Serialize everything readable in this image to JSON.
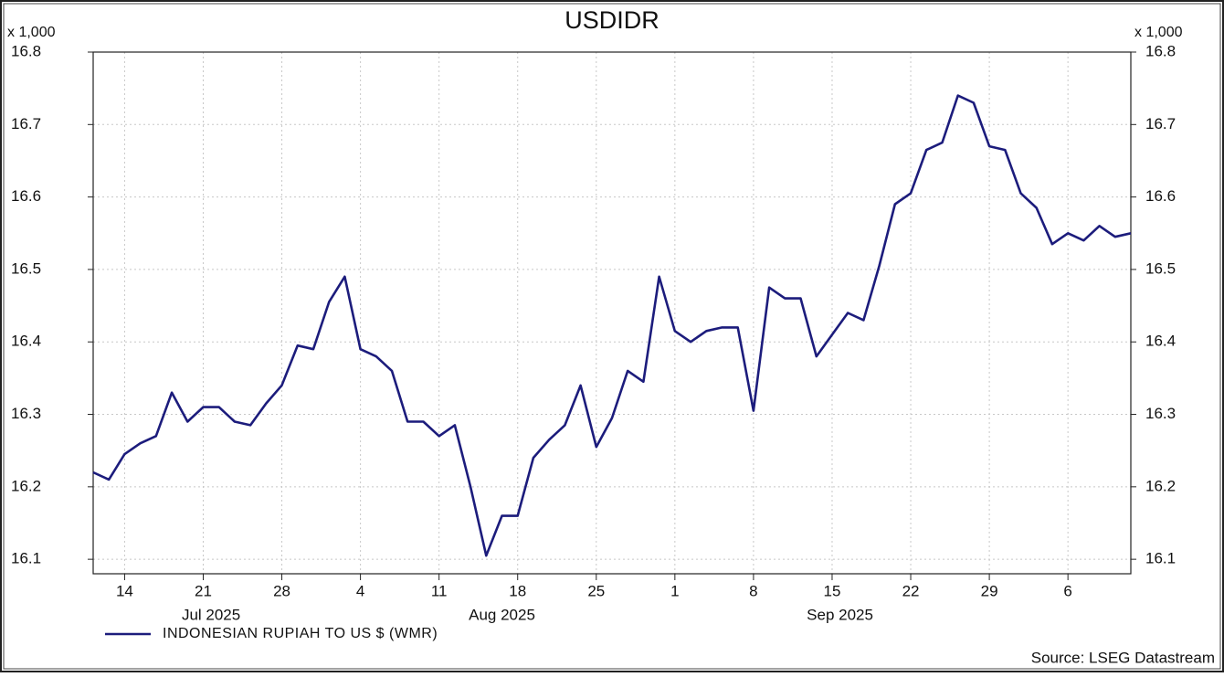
{
  "chart_data": {
    "type": "line",
    "title": "USDIDR",
    "y_unit_label": "x 1,000",
    "y2_unit_label": "x 1,000",
    "source": "Source: LSEG Datastream",
    "x": [
      "2025-07-10",
      "2025-07-11",
      "2025-07-14",
      "2025-07-15",
      "2025-07-16",
      "2025-07-17",
      "2025-07-18",
      "2025-07-21",
      "2025-07-22",
      "2025-07-23",
      "2025-07-24",
      "2025-07-25",
      "2025-07-28",
      "2025-07-29",
      "2025-07-30",
      "2025-07-31",
      "2025-08-01",
      "2025-08-04",
      "2025-08-05",
      "2025-08-06",
      "2025-08-07",
      "2025-08-08",
      "2025-08-11",
      "2025-08-12",
      "2025-08-13",
      "2025-08-14",
      "2025-08-15",
      "2025-08-18",
      "2025-08-19",
      "2025-08-20",
      "2025-08-21",
      "2025-08-22",
      "2025-08-25",
      "2025-08-26",
      "2025-08-27",
      "2025-08-28",
      "2025-08-29",
      "2025-09-01",
      "2025-09-02",
      "2025-09-03",
      "2025-09-04",
      "2025-09-05",
      "2025-09-08",
      "2025-09-09",
      "2025-09-10",
      "2025-09-11",
      "2025-09-12",
      "2025-09-15",
      "2025-09-16",
      "2025-09-17",
      "2025-09-18",
      "2025-09-19",
      "2025-09-22",
      "2025-09-23",
      "2025-09-24",
      "2025-09-25",
      "2025-09-26",
      "2025-09-29",
      "2025-09-30",
      "2025-10-01",
      "2025-10-02",
      "2025-10-03",
      "2025-10-06",
      "2025-10-07",
      "2025-10-08",
      "2025-10-09",
      "2025-10-10"
    ],
    "series": [
      {
        "name": "INDONESIAN RUPIAH TO US $ (WMR)",
        "color": "#1c1c7c",
        "values": [
          16.22,
          16.21,
          16.245,
          16.26,
          16.27,
          16.33,
          16.29,
          16.31,
          16.31,
          16.29,
          16.285,
          16.315,
          16.34,
          16.395,
          16.39,
          16.455,
          16.49,
          16.39,
          16.38,
          16.36,
          16.29,
          16.29,
          16.27,
          16.285,
          16.2,
          16.105,
          16.16,
          16.16,
          16.24,
          16.265,
          16.285,
          16.34,
          16.255,
          16.295,
          16.36,
          16.345,
          16.49,
          16.415,
          16.4,
          16.415,
          16.42,
          16.42,
          16.305,
          16.475,
          16.46,
          16.46,
          16.38,
          16.41,
          16.44,
          16.43,
          16.505,
          16.59,
          16.605,
          16.665,
          16.675,
          16.74,
          16.73,
          16.67,
          16.665,
          16.605,
          16.585,
          16.535,
          16.55,
          16.54,
          16.56,
          16.545,
          16.55
        ]
      }
    ],
    "xticks": [
      {
        "value": "2025-07-14",
        "label": "14"
      },
      {
        "value": "2025-07-21",
        "label": "21"
      },
      {
        "value": "2025-07-28",
        "label": "28"
      },
      {
        "value": "2025-08-04",
        "label": "4"
      },
      {
        "value": "2025-08-11",
        "label": "11"
      },
      {
        "value": "2025-08-18",
        "label": "18"
      },
      {
        "value": "2025-08-25",
        "label": "25"
      },
      {
        "value": "2025-09-01",
        "label": "1"
      },
      {
        "value": "2025-09-08",
        "label": "8"
      },
      {
        "value": "2025-09-15",
        "label": "15"
      },
      {
        "value": "2025-09-22",
        "label": "22"
      },
      {
        "value": "2025-09-29",
        "label": "29"
      },
      {
        "value": "2025-10-06",
        "label": "6"
      }
    ],
    "month_labels": [
      {
        "value": "2025-07",
        "label": "Jul 2025"
      },
      {
        "value": "2025-08",
        "label": "Aug 2025"
      },
      {
        "value": "2025-09",
        "label": "Sep 2025"
      }
    ],
    "ylim": [
      16.08,
      16.8
    ],
    "yticks": [
      16.1,
      16.2,
      16.3,
      16.4,
      16.5,
      16.6,
      16.7,
      16.8
    ],
    "y2lim": [
      16.08,
      16.8
    ],
    "y2ticks": [
      16.1,
      16.2,
      16.3,
      16.4,
      16.5,
      16.6,
      16.7,
      16.8
    ],
    "grid": true,
    "legend": "bottom-left"
  }
}
